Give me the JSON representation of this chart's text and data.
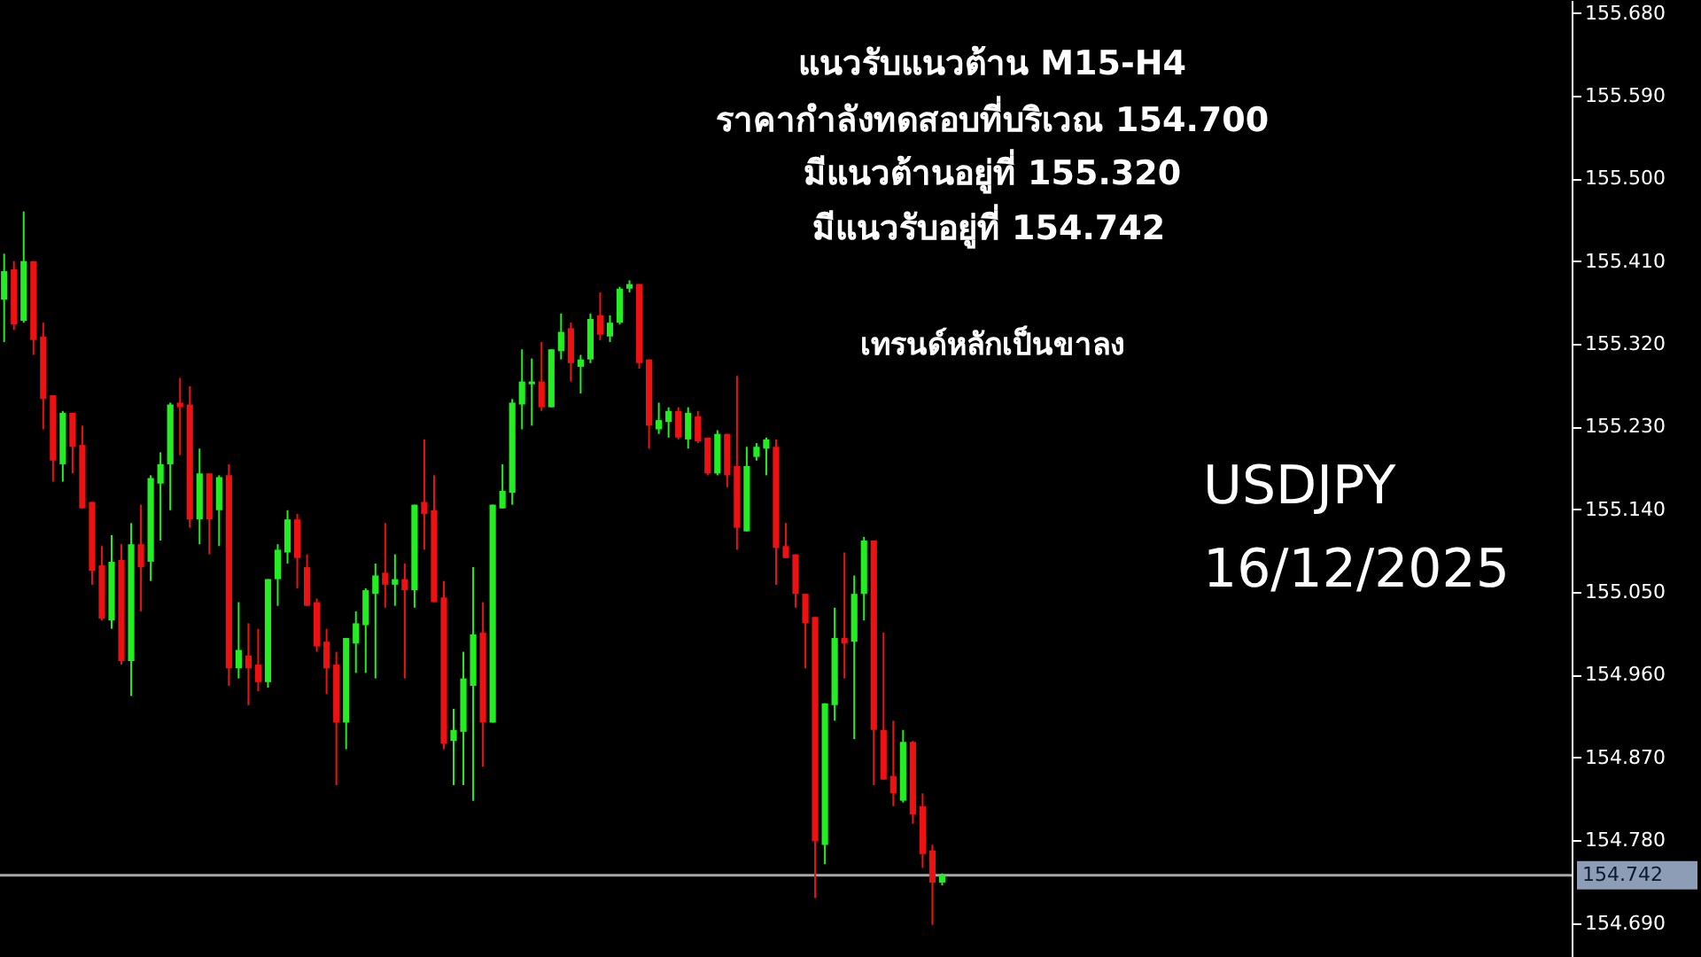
{
  "chart_data": {
    "type": "candlestick",
    "title": "แนวรับแนวต้าน M15-H4",
    "annotations": [
      "ราคากำลังทดสอบที่บริเวณ 154.700",
      "มีแนวต้านอยู่ที่  155.320",
      "มีแนวรับอยู่ที่ 154.742",
      "เทรนด์หลักเป็นขาลง",
      "USDJPY",
      "16/12/2025"
    ],
    "categories": [
      null,
      null,
      null,
      null,
      null,
      null,
      null,
      null,
      null,
      null,
      null,
      null,
      null,
      null,
      null,
      null,
      null,
      null,
      null,
      null,
      null,
      null,
      null,
      null,
      null,
      null,
      null,
      null,
      null,
      null,
      null,
      null,
      null,
      null,
      null,
      null,
      null,
      null,
      null,
      null,
      null,
      null,
      null,
      null,
      null,
      null,
      null,
      null,
      null,
      null,
      null,
      null,
      null,
      null,
      null,
      null,
      null,
      null,
      null,
      null,
      null,
      null,
      null,
      null,
      null,
      null,
      null,
      null,
      null,
      null,
      null,
      null,
      null,
      null,
      null,
      null,
      null,
      null,
      null,
      null,
      null,
      null,
      null,
      null,
      null,
      null,
      null,
      null,
      null,
      null,
      null,
      null,
      null,
      null,
      null,
      null,
      null,
      null,
      null,
      null,
      null,
      null,
      null,
      null,
      null,
      null,
      null,
      null,
      null,
      null,
      null,
      null,
      null,
      null,
      null,
      null,
      null,
      null,
      null,
      null,
      null,
      null,
      null,
      null,
      null,
      null,
      null,
      null,
      null,
      null,
      null,
      null,
      null,
      null,
      null,
      null,
      null,
      null,
      null,
      null,
      null,
      null,
      null,
      null,
      null,
      null,
      null,
      null,
      null,
      null,
      null,
      null,
      null,
      null,
      null,
      null,
      null,
      null,
      null,
      null,
      null
    ],
    "ohlc": [
      [
        155.368,
        155.418,
        155.322,
        155.399
      ],
      [
        155.401,
        155.41,
        155.335,
        155.341
      ],
      [
        155.345,
        155.464,
        155.343,
        155.41
      ],
      [
        155.41,
        155.41,
        155.308,
        155.324
      ],
      [
        155.328,
        155.343,
        155.227,
        155.26
      ],
      [
        155.264,
        155.264,
        155.17,
        155.193
      ],
      [
        155.189,
        155.247,
        155.17,
        155.245
      ],
      [
        155.245,
        155.245,
        155.179,
        155.208
      ],
      [
        155.21,
        155.231,
        155.141,
        155.141
      ],
      [
        155.148,
        155.148,
        155.058,
        155.073
      ],
      [
        155.079,
        155.1,
        155.019,
        155.021
      ],
      [
        155.019,
        155.112,
        155.01,
        155.083
      ],
      [
        155.085,
        155.102,
        154.971,
        154.975
      ],
      [
        154.975,
        155.125,
        154.937,
        155.102
      ],
      [
        155.102,
        155.145,
        155.029,
        155.077
      ],
      [
        155.083,
        155.177,
        155.062,
        155.174
      ],
      [
        155.168,
        155.202,
        155.106,
        155.189
      ],
      [
        155.189,
        155.256,
        155.139,
        155.254
      ],
      [
        155.256,
        155.283,
        155.199,
        155.251
      ],
      [
        155.254,
        155.274,
        155.12,
        155.129
      ],
      [
        155.129,
        155.206,
        155.102,
        155.179
      ],
      [
        155.179,
        155.179,
        155.091,
        155.129
      ],
      [
        155.139,
        155.177,
        155.1,
        155.175
      ],
      [
        155.177,
        155.189,
        154.948,
        154.967
      ],
      [
        154.967,
        155.039,
        154.956,
        154.987
      ],
      [
        154.981,
        155.016,
        154.927,
        154.967
      ],
      [
        154.971,
        155.01,
        154.942,
        154.952
      ],
      [
        154.952,
        155.064,
        154.946,
        155.064
      ],
      [
        155.064,
        155.102,
        155.035,
        155.096
      ],
      [
        155.093,
        155.139,
        155.081,
        155.129
      ],
      [
        155.129,
        155.135,
        155.054,
        155.087
      ],
      [
        155.077,
        155.091,
        155.035,
        155.035
      ],
      [
        155.039,
        155.043,
        154.985,
        154.991
      ],
      [
        154.996,
        155.01,
        154.939,
        154.967
      ],
      [
        154.971,
        154.985,
        154.84,
        154.908
      ],
      [
        154.908,
        155.0,
        154.879,
        155.0
      ],
      [
        154.994,
        155.029,
        154.962,
        155.016
      ],
      [
        155.014,
        155.054,
        154.962,
        155.052
      ],
      [
        155.048,
        155.081,
        154.956,
        155.068
      ],
      [
        155.071,
        155.125,
        155.033,
        155.058
      ],
      [
        155.058,
        155.091,
        155.035,
        155.064
      ],
      [
        155.064,
        155.081,
        154.956,
        155.052
      ],
      [
        155.052,
        155.145,
        155.033,
        155.145
      ],
      [
        155.148,
        155.216,
        155.096,
        155.135
      ],
      [
        155.139,
        155.177,
        155.039,
        155.039
      ],
      [
        155.044,
        155.062,
        154.879,
        154.885
      ],
      [
        154.888,
        154.923,
        154.84,
        154.9
      ],
      [
        154.898,
        154.985,
        154.84,
        154.956
      ],
      [
        154.948,
        155.077,
        154.823,
        155.004
      ],
      [
        155.006,
        155.039,
        154.86,
        154.908
      ],
      [
        154.908,
        155.145,
        154.908,
        155.145
      ],
      [
        155.141,
        155.189,
        155.141,
        155.16
      ],
      [
        155.158,
        155.26,
        155.145,
        155.256
      ],
      [
        155.254,
        155.314,
        155.227,
        155.279
      ],
      [
        155.276,
        155.304,
        155.231,
        155.279
      ],
      [
        155.279,
        155.322,
        155.247,
        155.251
      ],
      [
        155.251,
        155.314,
        155.251,
        155.314
      ],
      [
        155.312,
        155.353,
        155.303,
        155.333
      ],
      [
        155.337,
        155.343,
        155.279,
        155.299
      ],
      [
        155.295,
        155.308,
        155.266,
        155.303
      ],
      [
        155.303,
        155.353,
        155.299,
        155.347
      ],
      [
        155.351,
        155.376,
        155.324,
        155.33
      ],
      [
        155.328,
        155.351,
        155.322,
        155.343
      ],
      [
        155.343,
        155.382,
        155.341,
        155.38
      ],
      [
        155.38,
        155.389,
        155.376,
        155.385
      ],
      [
        155.385,
        155.385,
        155.293,
        155.299
      ],
      [
        155.303,
        155.303,
        155.206,
        155.231
      ],
      [
        155.227,
        155.256,
        155.222,
        155.237
      ],
      [
        155.235,
        155.251,
        155.218,
        155.247
      ],
      [
        155.247,
        155.251,
        155.216,
        155.218
      ],
      [
        155.216,
        155.251,
        155.206,
        155.245
      ],
      [
        155.241,
        155.247,
        155.212,
        155.214
      ],
      [
        155.218,
        155.218,
        155.177,
        155.179
      ],
      [
        155.179,
        155.226,
        155.177,
        155.222
      ],
      [
        155.222,
        155.222,
        155.164,
        155.177
      ],
      [
        155.187,
        155.285,
        155.096,
        155.12
      ],
      [
        155.116,
        155.208,
        155.116,
        155.187
      ],
      [
        155.197,
        155.212,
        155.193,
        155.208
      ],
      [
        155.206,
        155.218,
        155.177,
        155.216
      ],
      [
        155.208,
        155.216,
        155.058,
        155.098
      ],
      [
        155.1,
        155.125,
        155.087,
        155.087
      ],
      [
        155.091,
        155.091,
        155.033,
        155.048
      ],
      [
        155.048,
        155.048,
        154.967,
        155.016
      ],
      [
        155.023,
        155.023,
        154.717,
        154.779
      ],
      [
        154.775,
        154.929,
        154.754,
        154.929
      ],
      [
        154.927,
        155.033,
        154.91,
        155.0
      ],
      [
        155.0,
        155.093,
        154.956,
        154.994
      ],
      [
        154.996,
        155.068,
        154.89,
        155.048
      ],
      [
        155.048,
        155.11,
        155.019,
        155.106
      ],
      [
        155.106,
        155.106,
        154.84,
        154.9
      ],
      [
        154.9,
        155.006,
        154.846,
        154.846
      ],
      [
        154.85,
        154.91,
        154.817,
        154.831
      ],
      [
        154.823,
        154.9,
        154.821,
        154.887
      ],
      [
        154.887,
        154.888,
        154.798,
        154.808
      ],
      [
        154.817,
        154.831,
        154.75,
        154.765
      ],
      [
        154.769,
        154.775,
        154.688,
        154.734
      ],
      [
        154.734,
        154.744,
        154.731,
        154.742
      ],
      null,
      null,
      null,
      null,
      null,
      null,
      null,
      null,
      null,
      null,
      null,
      null,
      null,
      null,
      null,
      null,
      null,
      null,
      null,
      null,
      null,
      null,
      null,
      null,
      null,
      null,
      null,
      null,
      null,
      null,
      null,
      null,
      null,
      null,
      null,
      null,
      null,
      null,
      null,
      null,
      null,
      null,
      null,
      null,
      null,
      null,
      null,
      null,
      null,
      null,
      null,
      null,
      null,
      null,
      null,
      null,
      null,
      null,
      null,
      null,
      null,
      null,
      null,
      null
    ],
    "colors": [
      "#22ee22",
      "#ee1111",
      "#22ee22",
      "#ee1111",
      "#ee1111",
      "#ee1111",
      "#22ee22",
      "#ee1111",
      "#ee1111",
      "#ee1111",
      "#ee1111",
      "#22ee22",
      "#ee1111",
      "#22ee22",
      "#ee1111",
      "#22ee22",
      "#22ee22",
      "#22ee22",
      "#ee1111",
      "#ee1111",
      "#22ee22",
      "#ee1111",
      "#22ee22",
      "#ee1111",
      "#22ee22",
      "#ee1111",
      "#ee1111",
      "#22ee22",
      "#22ee22",
      "#22ee22",
      "#ee1111",
      "#ee1111",
      "#ee1111",
      "#ee1111",
      "#ee1111",
      "#22ee22",
      "#22ee22",
      "#22ee22",
      "#22ee22",
      "#ee1111",
      "#22ee22",
      "#ee1111",
      "#22ee22",
      "#ee1111",
      "#ee1111",
      "#ee1111",
      "#22ee22",
      "#22ee22",
      "#22ee22",
      "#ee1111",
      "#22ee22",
      "#22ee22",
      "#22ee22",
      "#22ee22",
      "#22ee22",
      "#ee1111",
      "#22ee22",
      "#22ee22",
      "#ee1111",
      "#22ee22",
      "#22ee22",
      "#ee1111",
      "#22ee22",
      "#22ee22",
      "#22ee22",
      "#ee1111",
      "#ee1111",
      "#22ee22",
      "#22ee22",
      "#ee1111",
      "#22ee22",
      "#ee1111",
      "#ee1111",
      "#22ee22",
      "#ee1111",
      "#ee1111",
      "#22ee22",
      "#22ee22",
      "#22ee22",
      "#ee1111",
      "#ee1111",
      "#ee1111",
      "#ee1111",
      "#ee1111",
      "#22ee22",
      "#22ee22",
      "#ee1111",
      "#22ee22",
      "#22ee22",
      "#ee1111",
      "#ee1111",
      "#ee1111",
      "#22ee22",
      "#ee1111",
      "#ee1111",
      "#ee1111",
      "#22ee22",
      null,
      null,
      null,
      null,
      null,
      null,
      null,
      null,
      null,
      null,
      null,
      null,
      null,
      null,
      null,
      null,
      null,
      null,
      null,
      null,
      null,
      null,
      null,
      null,
      null,
      null,
      null,
      null,
      null,
      null,
      null,
      null,
      null,
      null,
      null,
      null,
      null,
      null,
      null,
      null,
      null,
      null,
      null,
      null,
      null,
      null,
      null,
      null,
      null,
      null,
      null,
      null,
      null,
      null,
      null,
      null,
      null,
      null,
      null,
      null,
      null,
      null,
      null,
      null
    ],
    "ylim": [
      154.653,
      155.694
    ],
    "yticks": [
      {
        "value": 155.68,
        "label": "155.680"
      },
      {
        "value": 155.59,
        "label": "155.590"
      },
      {
        "value": 155.5,
        "label": "155.500"
      },
      {
        "value": 155.41,
        "label": "155.410"
      },
      {
        "value": 155.32,
        "label": "155.320"
      },
      {
        "value": 155.23,
        "label": "155.230"
      },
      {
        "value": 155.14,
        "label": "155.140"
      },
      {
        "value": 155.05,
        "label": "155.050"
      },
      {
        "value": 154.96,
        "label": "154.960"
      },
      {
        "value": 154.87,
        "label": "154.870"
      },
      {
        "value": 154.78,
        "label": "154.780"
      },
      {
        "value": 154.69,
        "label": "154.690"
      }
    ],
    "ref_lines": [
      {
        "axis": "y",
        "value": 154.742,
        "label": "154.742",
        "color": "#a8a8a8",
        "line_style": "solid"
      }
    ]
  }
}
